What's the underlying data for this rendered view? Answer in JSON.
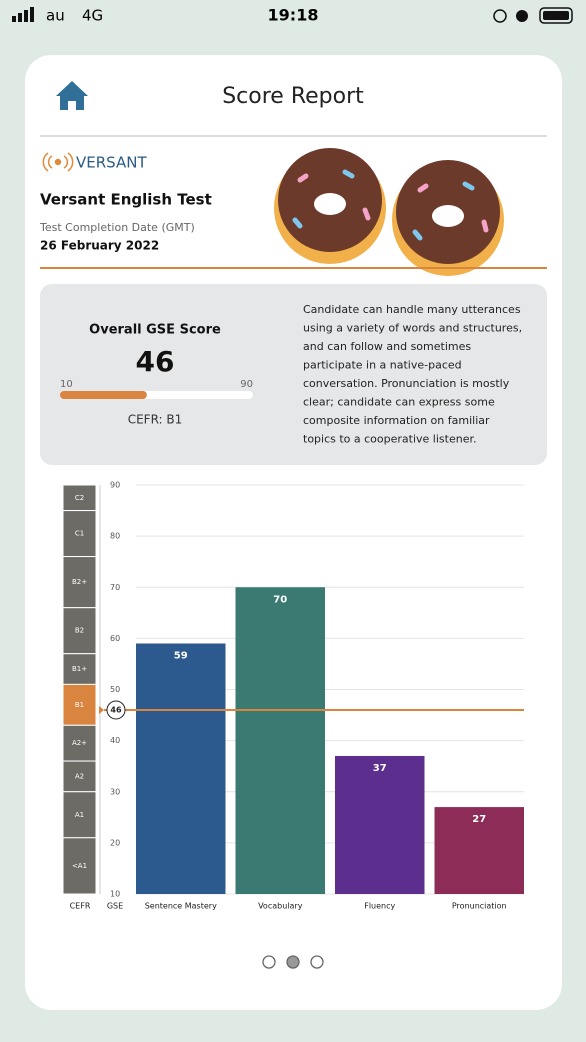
{
  "status_bar": {
    "carrier": "au",
    "network": "4G",
    "time": "19:18"
  },
  "header": {
    "title": "Score Report"
  },
  "test": {
    "brand": "VERSANT",
    "name": "Versant English Test",
    "date_label": "Test Completion Date (GMT)",
    "date": "26 February 2022"
  },
  "score": {
    "label": "Overall GSE Score",
    "value": 46,
    "min": 10,
    "max": 90,
    "cefr": "CEFR: B1",
    "description": [
      "Candidate can handle many utterances",
      "using a variety of words and structures,",
      "and can follow and sometimes",
      "participate in a native-paced",
      "conversation. Pronunciation is mostly",
      "clear; candidate can express some",
      "composite information on familiar",
      "topics to a cooperative listener."
    ]
  },
  "chart_data": {
    "type": "bar",
    "categories": [
      "Sentence Mastery",
      "Vocabulary",
      "Fluency",
      "Pronunciation"
    ],
    "values": [
      59,
      70,
      37,
      27
    ],
    "colors": [
      "#2d5a8e",
      "#3a7a72",
      "#5c2f8f",
      "#8d2c57"
    ],
    "ylim": [
      10,
      90
    ],
    "yticks": [
      10,
      20,
      30,
      40,
      50,
      60,
      70,
      80,
      90
    ],
    "grid": true,
    "marker": 46,
    "marker_color": "#d9843f",
    "x_label_cefr": "CEFR",
    "x_label_gse": "GSE",
    "cefr_bands": [
      {
        "label": "C2",
        "from": 85,
        "to": 90
      },
      {
        "label": "C1",
        "from": 76,
        "to": 85
      },
      {
        "label": "B2+",
        "from": 66,
        "to": 76
      },
      {
        "label": "B2",
        "from": 57,
        "to": 66
      },
      {
        "label": "B1+",
        "from": 51,
        "to": 57
      },
      {
        "label": "B1",
        "from": 43,
        "to": 51
      },
      {
        "label": "A2+",
        "from": 36,
        "to": 43
      },
      {
        "label": "A2",
        "from": 30,
        "to": 36
      },
      {
        "label": "A1",
        "from": 21,
        "to": 30
      },
      {
        "label": "<A1",
        "from": 10,
        "to": 21
      }
    ]
  }
}
